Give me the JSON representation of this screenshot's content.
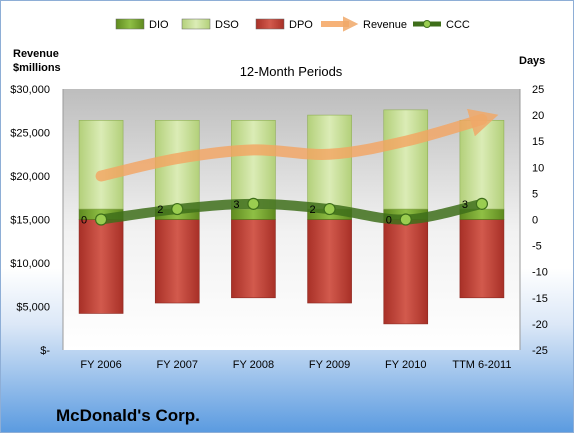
{
  "chart_data": {
    "type": "bar",
    "title": "12-Month Periods",
    "footer": "McDonald's Corp.",
    "y_left_label": [
      "Revenue",
      "$millions"
    ],
    "y_right_label": "Days",
    "categories": [
      "FY 2006",
      "FY 2007",
      "FY 2008",
      "FY 2009",
      "FY 2010",
      "TTM 6-2011"
    ],
    "y_left": {
      "min": 0,
      "max": 30000,
      "step": 5000,
      "tick_labels": [
        "$-",
        "$5,000",
        "$10,000",
        "$15,000",
        "$20,000",
        "$25,000",
        "$30,000"
      ]
    },
    "y_right": {
      "min": -25,
      "max": 25,
      "step": 5,
      "tick_labels": [
        "-25",
        "-20",
        "-15",
        "-10",
        "-5",
        "0",
        "5",
        "10",
        "15",
        "20",
        "25"
      ]
    },
    "legend_position": "top",
    "series": [
      {
        "name": "DIO",
        "type": "bar",
        "axis": "right",
        "color": "#76a02c",
        "values": [
          2,
          2,
          2,
          2,
          2,
          2
        ]
      },
      {
        "name": "DSO",
        "type": "bar",
        "axis": "right",
        "color": "#c9e09a",
        "values": [
          17,
          17,
          17,
          18,
          19,
          17
        ]
      },
      {
        "name": "DPO",
        "type": "bar",
        "axis": "right",
        "color": "#c0392b",
        "values": [
          -18,
          -16,
          -15,
          -16,
          -20,
          -15
        ]
      },
      {
        "name": "Revenue",
        "type": "line",
        "axis": "left",
        "color": "#f4a460",
        "values": [
          20000,
          22000,
          23000,
          22500,
          24000,
          26500
        ]
      },
      {
        "name": "CCC",
        "type": "line",
        "axis": "right",
        "color": "#3e6e1a",
        "values": [
          0,
          2,
          3,
          2,
          0,
          3
        ],
        "data_labels": [
          "0",
          "2",
          "3",
          "2",
          "0",
          "3"
        ]
      }
    ]
  }
}
